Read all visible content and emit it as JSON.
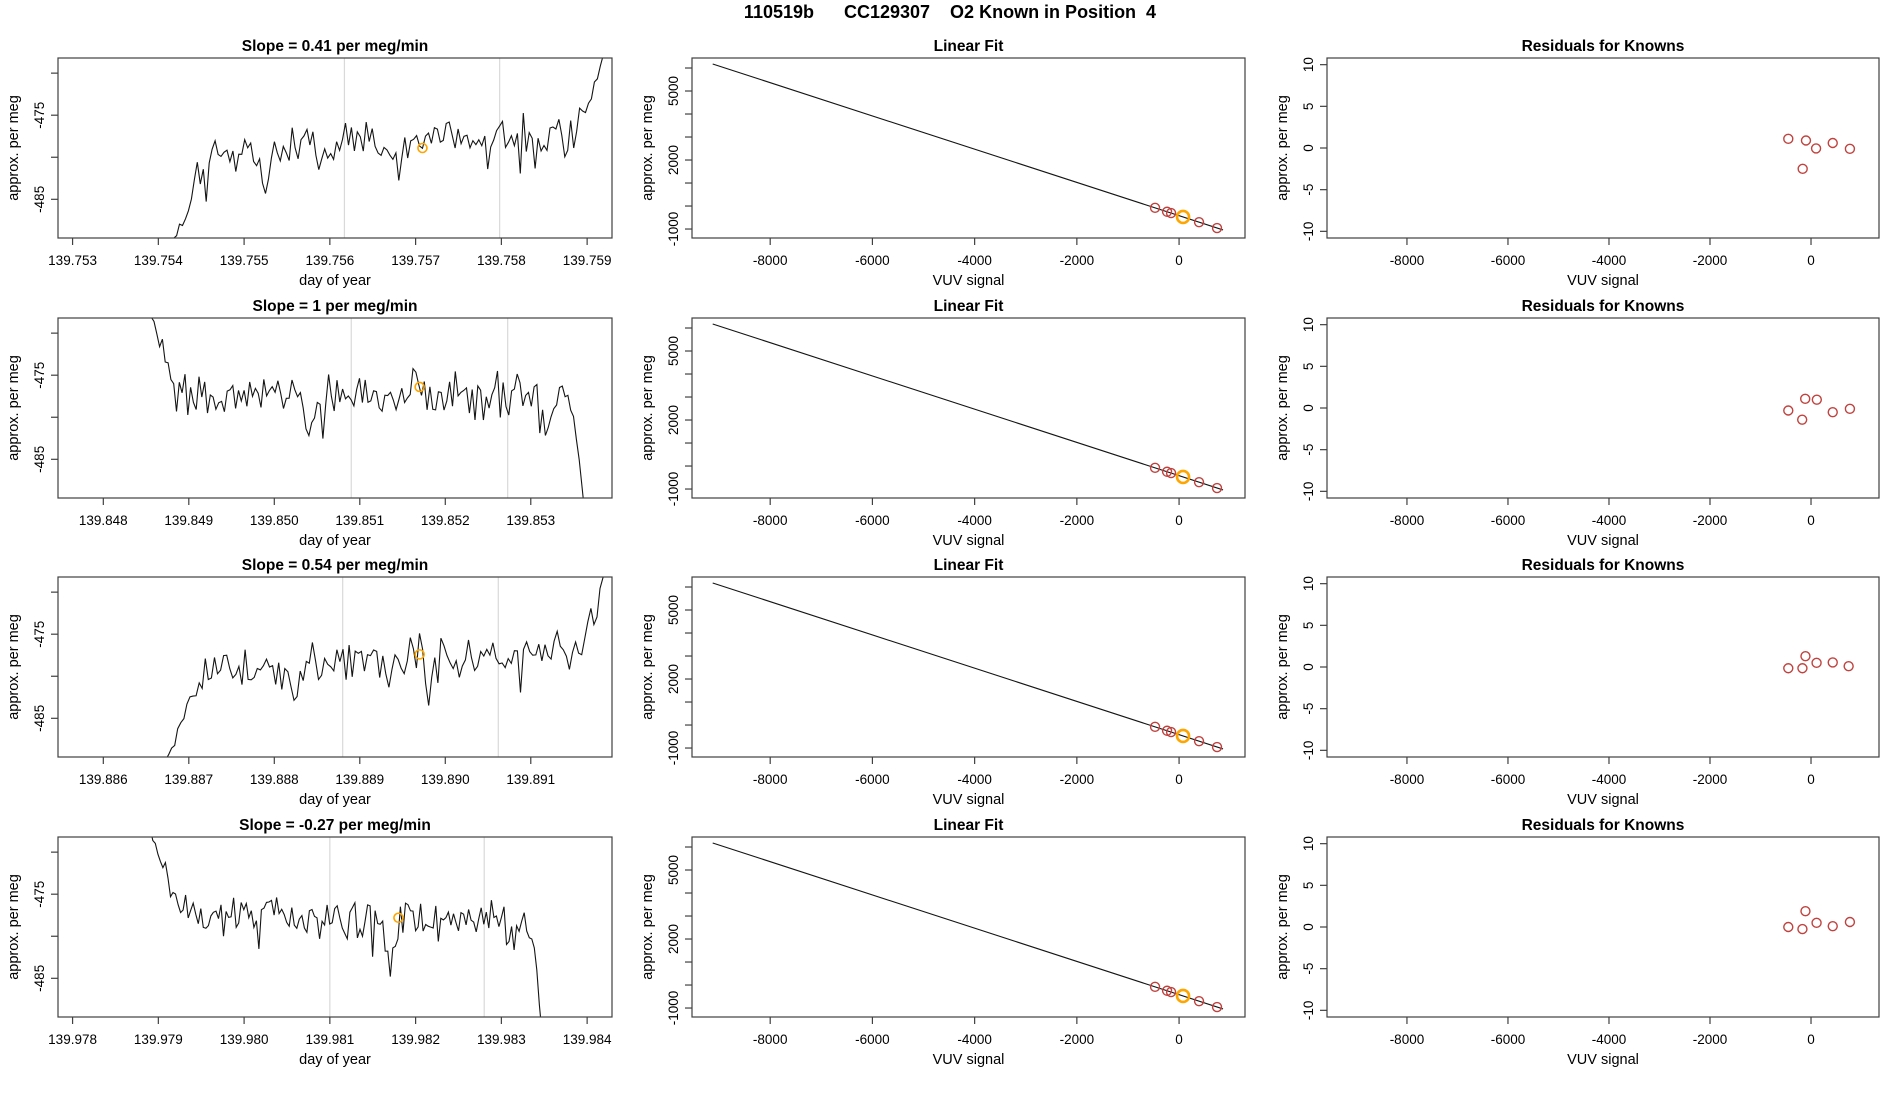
{
  "page_title": "110519b      CC129307    O2 Known in Position  4",
  "colors": {
    "series": "#141414",
    "known_point": "#c0423e",
    "highlight_point": "#ffa500",
    "vline": "#d9d9d9",
    "frame": "#404040",
    "text": "#000000"
  },
  "chart_data": [
    {
      "timeseries": {
        "type": "line",
        "title": "Slope =  0.41  per meg/min",
        "xlabel": "day of year",
        "ylabel": "approx. per meg",
        "xlim": [
          139.75283,
          139.75929
        ],
        "ylim": [
          -489.6,
          -468.2
        ],
        "xticks": [
          139.753,
          139.754,
          139.755,
          139.756,
          139.757,
          139.758,
          139.759
        ],
        "xtick_labels": [
          "139.753",
          "139.754",
          "139.755",
          "139.756",
          "139.757",
          "139.758",
          "139.759"
        ],
        "yticks": [
          -485,
          -480,
          -475,
          -470
        ],
        "ytick_labels": [
          "-485",
          "",
          "-475",
          ""
        ],
        "vlines": [
          139.75617,
          139.75798
        ],
        "highlight_point": {
          "x": 139.75708,
          "y": -478.9
        },
        "series_spec": {
          "seed": 101,
          "n": 150,
          "entry": "rise",
          "entry_frac": 0.198,
          "plateau_start_frac": 0.265,
          "exit": "spike_up",
          "exit_frac": 0.928,
          "end_frac": 0.995,
          "plateau": -478.4,
          "drift": 2.4,
          "noise": 1.5,
          "dips": [
            {
              "f": 0.372,
              "d": 4.2
            },
            {
              "f": 0.615,
              "d": 3.4
            }
          ]
        }
      },
      "linear_fit": {
        "type": "line+scatter",
        "title": "Linear Fit",
        "xlabel": "VUV signal",
        "ylabel": "approx. per meg",
        "xlim": [
          -9530,
          1290
        ],
        "ylim": [
          -1390,
          6435
        ],
        "xticks": [
          -8000,
          -6000,
          -4000,
          -2000,
          0
        ],
        "xtick_labels": [
          "-8000",
          "-6000",
          "-4000",
          "-2000",
          "0"
        ],
        "yticks": [
          -1000,
          0,
          1000,
          2000,
          3000,
          4000,
          5000,
          6000
        ],
        "ytick_labels": [
          "-1000",
          "",
          "",
          "2000",
          "",
          "",
          "5000",
          ""
        ],
        "fit_line": {
          "x": [
            -9125,
            860
          ],
          "y": [
            6175,
            -1040
          ]
        },
        "points": [
          {
            "x": -470,
            "y": -79
          },
          {
            "x": -235,
            "y": -249
          },
          {
            "x": -156,
            "y": -306
          },
          {
            "x": 78,
            "y": -475,
            "highlight": true
          },
          {
            "x": 391,
            "y": -701
          },
          {
            "x": 743,
            "y": -956
          }
        ]
      },
      "residuals": {
        "type": "scatter",
        "title": "Residuals for Knowns",
        "xlabel": "VUV signal",
        "ylabel": "approx. per meg",
        "xlim": [
          -9583,
          1346
        ],
        "ylim": [
          -10.8,
          10.8
        ],
        "xticks": [
          -8000,
          -6000,
          -4000,
          -2000,
          0
        ],
        "xtick_labels": [
          "-8000",
          "-6000",
          "-4000",
          "-2000",
          "0"
        ],
        "yticks": [
          -10,
          -5,
          0,
          5,
          10
        ],
        "ytick_labels": [
          "-10",
          "-5",
          "0",
          "5",
          "10"
        ],
        "points": [
          {
            "x": -450,
            "y": 1.1
          },
          {
            "x": -100,
            "y": 0.9
          },
          {
            "x": 100,
            "y": -0.05
          },
          {
            "x": 430,
            "y": 0.6
          },
          {
            "x": 770,
            "y": -0.1
          },
          {
            "x": -165,
            "y": -2.5
          }
        ]
      }
    },
    {
      "timeseries": {
        "type": "line",
        "title": "Slope =  1  per meg/min",
        "xlabel": "day of year",
        "ylabel": "approx. per meg",
        "xlim": [
          139.84747,
          139.85395
        ],
        "ylim": [
          -489.6,
          -468.2
        ],
        "xticks": [
          139.848,
          139.849,
          139.85,
          139.851,
          139.852,
          139.853
        ],
        "xtick_labels": [
          "139.848",
          "139.849",
          "139.850",
          "139.851",
          "139.852",
          "139.853"
        ],
        "yticks": [
          -485,
          -480,
          -475,
          -470
        ],
        "ytick_labels": [
          "-485",
          "",
          "-475",
          ""
        ],
        "vlines": [
          139.8509,
          139.85273
        ],
        "highlight_point": {
          "x": 139.8517,
          "y": -476.4
        },
        "series_spec": {
          "seed": 208,
          "n": 158,
          "entry": "fall",
          "entry_frac": 0.158,
          "plateau_start_frac": 0.215,
          "exit": "drop_down",
          "exit_frac": 0.918,
          "end_frac": 0.956,
          "plateau": -477.4,
          "drift": 0.4,
          "noise": 1.5,
          "dips": [
            {
              "f": 0.455,
              "d": 3.6
            },
            {
              "f": 0.885,
              "d": 3.8
            }
          ]
        }
      },
      "linear_fit": {
        "type": "line+scatter",
        "title": "Linear Fit",
        "xlabel": "VUV signal",
        "ylabel": "approx. per meg",
        "xlim": [
          -9530,
          1290
        ],
        "ylim": [
          -1390,
          6435
        ],
        "xticks": [
          -8000,
          -6000,
          -4000,
          -2000,
          0
        ],
        "xtick_labels": [
          "-8000",
          "-6000",
          "-4000",
          "-2000",
          "0"
        ],
        "yticks": [
          -1000,
          0,
          1000,
          2000,
          3000,
          4000,
          5000,
          6000
        ],
        "ytick_labels": [
          "-1000",
          "",
          "",
          "2000",
          "",
          "",
          "5000",
          ""
        ],
        "fit_line": {
          "x": [
            -9125,
            860
          ],
          "y": [
            6175,
            -1040
          ]
        },
        "points": [
          {
            "x": -470,
            "y": -79
          },
          {
            "x": -235,
            "y": -249
          },
          {
            "x": -156,
            "y": -306
          },
          {
            "x": 78,
            "y": -475,
            "highlight": true
          },
          {
            "x": 391,
            "y": -701
          },
          {
            "x": 743,
            "y": -956
          }
        ]
      },
      "residuals": {
        "type": "scatter",
        "title": "Residuals for Knowns",
        "xlabel": "VUV signal",
        "ylabel": "approx. per meg",
        "xlim": [
          -9583,
          1346
        ],
        "ylim": [
          -10.8,
          10.8
        ],
        "xticks": [
          -8000,
          -6000,
          -4000,
          -2000,
          0
        ],
        "xtick_labels": [
          "-8000",
          "-6000",
          "-4000",
          "-2000",
          "0"
        ],
        "yticks": [
          -10,
          -5,
          0,
          5,
          10
        ],
        "ytick_labels": [
          "-10",
          "-5",
          "0",
          "5",
          "10"
        ],
        "points": [
          {
            "x": -450,
            "y": -0.3
          },
          {
            "x": -115,
            "y": 1.1
          },
          {
            "x": 115,
            "y": 1.0
          },
          {
            "x": -175,
            "y": -1.4
          },
          {
            "x": 430,
            "y": -0.5
          },
          {
            "x": 770,
            "y": -0.1
          }
        ]
      }
    },
    {
      "timeseries": {
        "type": "line",
        "title": "Slope =  0.54  per meg/min",
        "xlabel": "day of year",
        "ylabel": "approx. per meg",
        "xlim": [
          139.88547,
          139.89195
        ],
        "ylim": [
          -489.6,
          -468.2
        ],
        "xticks": [
          139.886,
          139.887,
          139.888,
          139.889,
          139.89,
          139.891
        ],
        "xtick_labels": [
          "139.886",
          "139.887",
          "139.888",
          "139.889",
          "139.890",
          "139.891"
        ],
        "yticks": [
          -485,
          -480,
          -475,
          -470
        ],
        "ytick_labels": [
          "-485",
          "",
          "-475",
          ""
        ],
        "vlines": [
          139.8888,
          139.89062
        ],
        "highlight_point": {
          "x": 139.8897,
          "y": -477.4
        },
        "series_spec": {
          "seed": 309,
          "n": 148,
          "entry": "rise",
          "entry_frac": 0.183,
          "plateau_start_frac": 0.262,
          "exit": "spike_up",
          "exit_frac": 0.935,
          "end_frac": 0.995,
          "plateau": -478.0,
          "drift": 1.8,
          "noise": 1.5,
          "dips": [
            {
              "f": 0.425,
              "d": 5.6
            }
          ]
        }
      },
      "linear_fit": {
        "type": "line+scatter",
        "title": "Linear Fit",
        "xlabel": "VUV signal",
        "ylabel": "approx. per meg",
        "xlim": [
          -9530,
          1290
        ],
        "ylim": [
          -1390,
          6435
        ],
        "xticks": [
          -8000,
          -6000,
          -4000,
          -2000,
          0
        ],
        "xtick_labels": [
          "-8000",
          "-6000",
          "-4000",
          "-2000",
          "0"
        ],
        "yticks": [
          -1000,
          0,
          1000,
          2000,
          3000,
          4000,
          5000,
          6000
        ],
        "ytick_labels": [
          "-1000",
          "",
          "",
          "2000",
          "",
          "",
          "5000",
          ""
        ],
        "fit_line": {
          "x": [
            -9125,
            860
          ],
          "y": [
            6175,
            -1040
          ]
        },
        "points": [
          {
            "x": -470,
            "y": -79
          },
          {
            "x": -235,
            "y": -249
          },
          {
            "x": -156,
            "y": -306
          },
          {
            "x": 78,
            "y": -475,
            "highlight": true
          },
          {
            "x": 391,
            "y": -701
          },
          {
            "x": 743,
            "y": -956
          }
        ]
      },
      "residuals": {
        "type": "scatter",
        "title": "Residuals for Knowns",
        "xlabel": "VUV signal",
        "ylabel": "approx. per meg",
        "xlim": [
          -9583,
          1346
        ],
        "ylim": [
          -10.8,
          10.8
        ],
        "xticks": [
          -8000,
          -6000,
          -4000,
          -2000,
          0
        ],
        "xtick_labels": [
          "-8000",
          "-6000",
          "-4000",
          "-2000",
          "0"
        ],
        "yticks": [
          -10,
          -5,
          0,
          5,
          10
        ],
        "ytick_labels": [
          "-10",
          "-5",
          "0",
          "5",
          "10"
        ],
        "points": [
          {
            "x": -450,
            "y": -0.15
          },
          {
            "x": -170,
            "y": -0.15
          },
          {
            "x": -110,
            "y": 1.3
          },
          {
            "x": 110,
            "y": 0.5
          },
          {
            "x": 430,
            "y": 0.55
          },
          {
            "x": 745,
            "y": 0.1
          }
        ]
      }
    },
    {
      "timeseries": {
        "type": "line",
        "title": "Slope =  -0.27  per meg/min",
        "xlabel": "day of year",
        "ylabel": "approx. per meg",
        "xlim": [
          139.97783,
          139.98429
        ],
        "ylim": [
          -489.6,
          -468.2
        ],
        "xticks": [
          139.978,
          139.979,
          139.98,
          139.981,
          139.982,
          139.983,
          139.984
        ],
        "xtick_labels": [
          "139.978",
          "139.979",
          "139.980",
          "139.981",
          "139.982",
          "139.983",
          "139.984"
        ],
        "yticks": [
          -485,
          -480,
          -475,
          -470
        ],
        "ytick_labels": [
          "-485",
          "",
          "-475",
          ""
        ],
        "vlines": [
          139.981,
          139.9828
        ],
        "highlight_point": {
          "x": 139.9818,
          "y": -477.8
        },
        "series_spec": {
          "seed": 412,
          "n": 158,
          "entry": "fall",
          "entry_frac": 0.162,
          "plateau_start_frac": 0.215,
          "exit": "drop_down",
          "exit_frac": 0.845,
          "end_frac": 0.878,
          "plateau": -477.6,
          "drift": -0.5,
          "noise": 1.5,
          "dips": [
            {
              "f": 0.598,
              "d": 3.6
            },
            {
              "f": 0.815,
              "d": 3.2
            }
          ]
        }
      },
      "linear_fit": {
        "type": "line+scatter",
        "title": "Linear Fit",
        "xlabel": "VUV signal",
        "ylabel": "approx. per meg",
        "xlim": [
          -9530,
          1290
        ],
        "ylim": [
          -1390,
          6435
        ],
        "xticks": [
          -8000,
          -6000,
          -4000,
          -2000,
          0
        ],
        "xtick_labels": [
          "-8000",
          "-6000",
          "-4000",
          "-2000",
          "0"
        ],
        "yticks": [
          -1000,
          0,
          1000,
          2000,
          3000,
          4000,
          5000,
          6000
        ],
        "ytick_labels": [
          "-1000",
          "",
          "",
          "2000",
          "",
          "",
          "5000",
          ""
        ],
        "fit_line": {
          "x": [
            -9125,
            860
          ],
          "y": [
            6175,
            -1040
          ]
        },
        "points": [
          {
            "x": -470,
            "y": -79
          },
          {
            "x": -235,
            "y": -249
          },
          {
            "x": -156,
            "y": -306
          },
          {
            "x": 78,
            "y": -475,
            "highlight": true
          },
          {
            "x": 391,
            "y": -701
          },
          {
            "x": 743,
            "y": -956
          }
        ]
      },
      "residuals": {
        "type": "scatter",
        "title": "Residuals for Knowns",
        "xlabel": "VUV signal",
        "ylabel": "approx. per meg",
        "xlim": [
          -9583,
          1346
        ],
        "ylim": [
          -10.8,
          10.8
        ],
        "xticks": [
          -8000,
          -6000,
          -4000,
          -2000,
          0
        ],
        "xtick_labels": [
          "-8000",
          "-6000",
          "-4000",
          "-2000",
          "0"
        ],
        "yticks": [
          -10,
          -5,
          0,
          5,
          10
        ],
        "ytick_labels": [
          "-10",
          "-5",
          "0",
          "5",
          "10"
        ],
        "points": [
          {
            "x": -450,
            "y": 0.0
          },
          {
            "x": -170,
            "y": -0.25
          },
          {
            "x": -110,
            "y": 1.9
          },
          {
            "x": 110,
            "y": 0.5
          },
          {
            "x": 430,
            "y": 0.1
          },
          {
            "x": 770,
            "y": 0.6
          }
        ]
      }
    }
  ]
}
